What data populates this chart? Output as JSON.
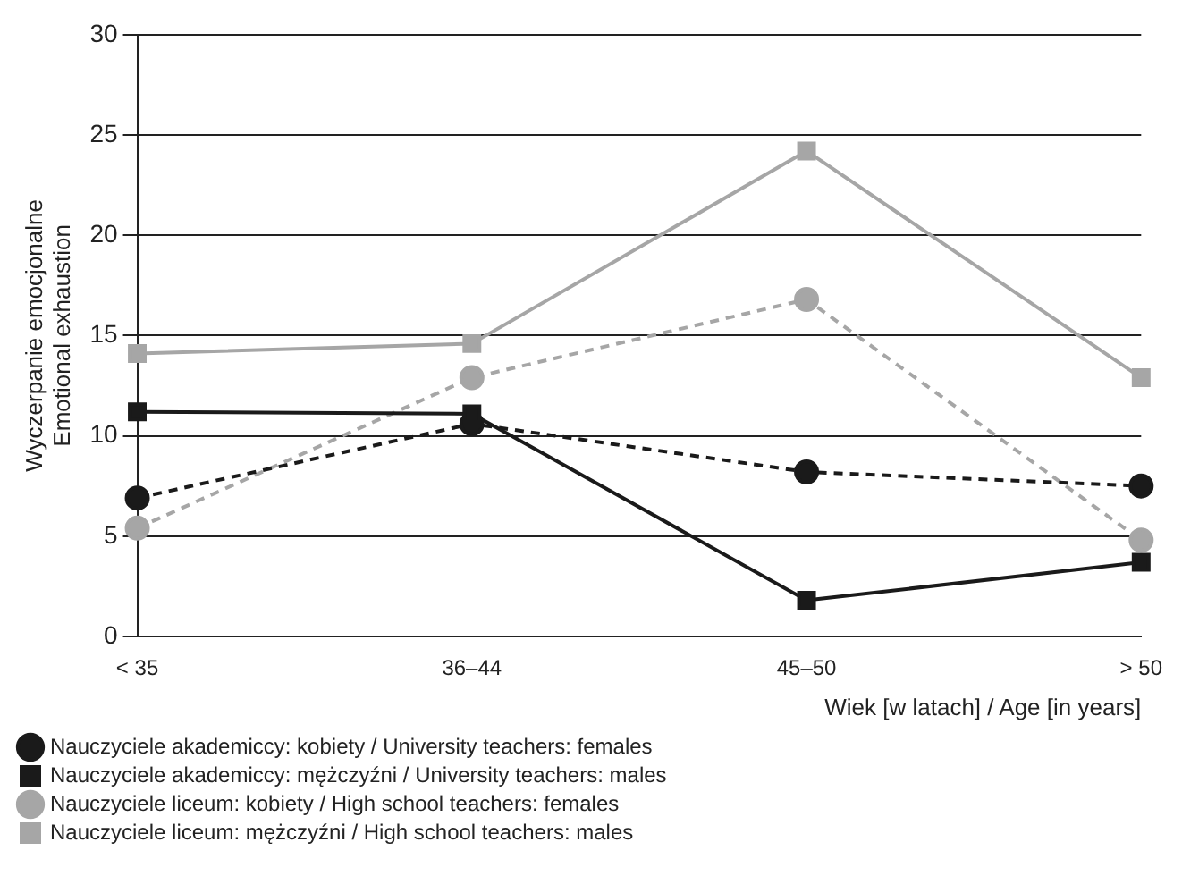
{
  "chart_data": {
    "type": "line",
    "xlabel": "Wiek [w latach] / Age [in years]",
    "ylabel": "Wyczerpanie emocjonalne\nEmotional exhaustion",
    "categories": [
      "< 35",
      "36–44",
      "45–50",
      "> 50"
    ],
    "ylim": [
      0,
      30
    ],
    "yticks": [
      0,
      5,
      10,
      15,
      20,
      25,
      30
    ],
    "grid": "y",
    "legend": "bottom",
    "series": [
      {
        "name": "Nauczyciele akademiccy: kobiety / University teachers: females",
        "color": "#1a1a1a",
        "marker": "circle",
        "line_style": "dashed",
        "values": [
          6.9,
          10.6,
          8.2,
          7.5
        ]
      },
      {
        "name": "Nauczyciele akademiccy: mężczyźni / University teachers: males",
        "color": "#1a1a1a",
        "marker": "square",
        "line_style": "solid",
        "values": [
          11.2,
          11.1,
          1.8,
          3.7
        ]
      },
      {
        "name": "Nauczyciele liceum: kobiety / High school teachers: females",
        "color": "#a6a6a6",
        "marker": "circle",
        "line_style": "dashed",
        "values": [
          5.4,
          12.9,
          16.8,
          4.8
        ]
      },
      {
        "name": "Nauczyciele liceum: mężczyźni / High school teachers: males",
        "color": "#a6a6a6",
        "marker": "square",
        "line_style": "solid",
        "values": [
          14.1,
          14.6,
          24.2,
          12.9
        ]
      }
    ]
  }
}
